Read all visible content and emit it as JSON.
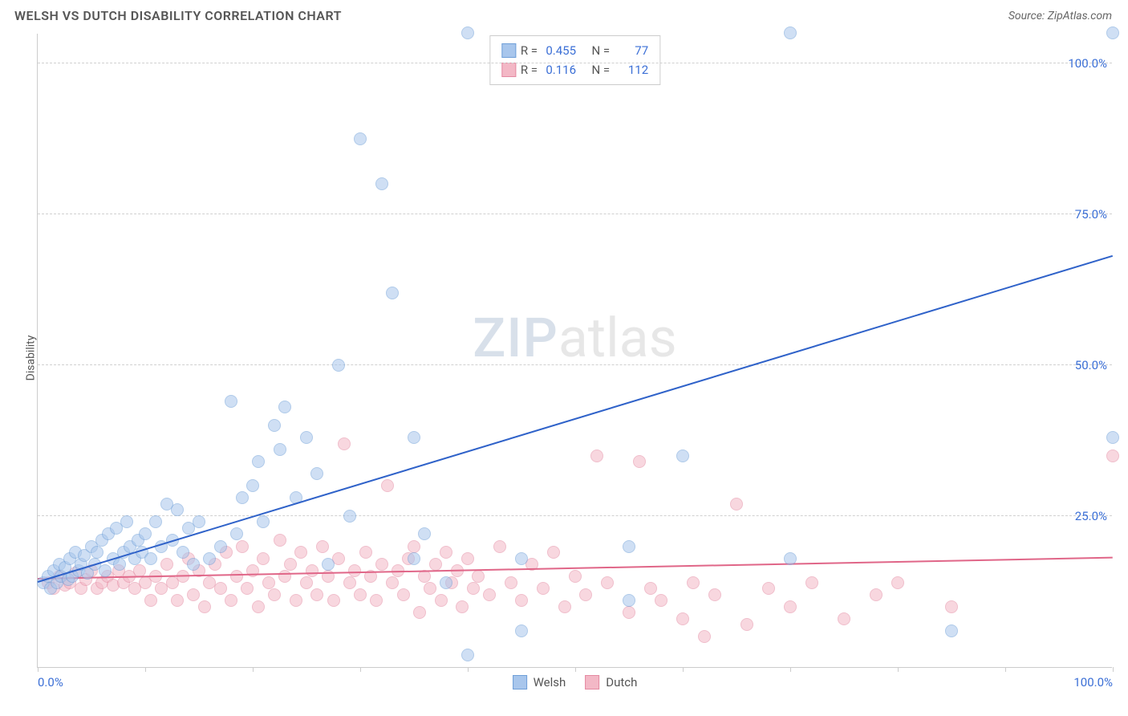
{
  "header": {
    "title": "WELSH VS DUTCH DISABILITY CORRELATION CHART",
    "source": "Source: ZipAtlas.com"
  },
  "watermark": {
    "zip": "ZIP",
    "atlas": "atlas"
  },
  "chart": {
    "type": "scatter",
    "ylabel": "Disability",
    "xlim": [
      0,
      100
    ],
    "ylim": [
      0,
      105
    ],
    "y_gridlines": [
      25,
      50,
      75,
      100
    ],
    "y_tick_labels": [
      "25.0%",
      "50.0%",
      "75.0%",
      "100.0%"
    ],
    "x_ticks": [
      0,
      10,
      20,
      30,
      40,
      50,
      60,
      70,
      80,
      90,
      100
    ],
    "x_tick_labels": {
      "0": "0.0%",
      "100": "100.0%"
    },
    "grid_color": "#d0d0d0",
    "axis_color": "#cccccc",
    "background_color": "#ffffff",
    "marker_radius": 8,
    "marker_opacity": 0.55,
    "trendline_width": 2
  },
  "series": {
    "welsh": {
      "label": "Welsh",
      "color_fill": "#a8c6ec",
      "color_stroke": "#6f9fd8",
      "line_color": "#2f62c9",
      "R": "0.455",
      "N": "77",
      "trend": {
        "x1": 0,
        "y1": 14,
        "x2": 100,
        "y2": 68
      },
      "points": [
        [
          0.5,
          14
        ],
        [
          1,
          15
        ],
        [
          1.2,
          13
        ],
        [
          1.5,
          16
        ],
        [
          1.8,
          14
        ],
        [
          2,
          17
        ],
        [
          2.2,
          15
        ],
        [
          2.5,
          16.5
        ],
        [
          2.8,
          14.5
        ],
        [
          3,
          18
        ],
        [
          3.2,
          15
        ],
        [
          3.5,
          19
        ],
        [
          3.8,
          16
        ],
        [
          4,
          17
        ],
        [
          4.3,
          18.5
        ],
        [
          4.6,
          15.5
        ],
        [
          5,
          20
        ],
        [
          5.3,
          17
        ],
        [
          5.5,
          19
        ],
        [
          6,
          21
        ],
        [
          6.3,
          16
        ],
        [
          6.6,
          22
        ],
        [
          7,
          18
        ],
        [
          7.3,
          23
        ],
        [
          7.6,
          17
        ],
        [
          8,
          19
        ],
        [
          8.3,
          24
        ],
        [
          8.6,
          20
        ],
        [
          9,
          18
        ],
        [
          9.3,
          21
        ],
        [
          9.7,
          19
        ],
        [
          10,
          22
        ],
        [
          10.5,
          18
        ],
        [
          11,
          24
        ],
        [
          11.5,
          20
        ],
        [
          12,
          27
        ],
        [
          12.5,
          21
        ],
        [
          13,
          26
        ],
        [
          13.5,
          19
        ],
        [
          14,
          23
        ],
        [
          14.5,
          17
        ],
        [
          15,
          24
        ],
        [
          16,
          18
        ],
        [
          17,
          20
        ],
        [
          18,
          44
        ],
        [
          18.5,
          22
        ],
        [
          19,
          28
        ],
        [
          20,
          30
        ],
        [
          20.5,
          34
        ],
        [
          21,
          24
        ],
        [
          22,
          40
        ],
        [
          22.5,
          36
        ],
        [
          23,
          43
        ],
        [
          24,
          28
        ],
        [
          25,
          38
        ],
        [
          26,
          32
        ],
        [
          27,
          17
        ],
        [
          28,
          50
        ],
        [
          29,
          25
        ],
        [
          30,
          87.5
        ],
        [
          32,
          80
        ],
        [
          33,
          62
        ],
        [
          35,
          18
        ],
        [
          35,
          38
        ],
        [
          36,
          22
        ],
        [
          38,
          14
        ],
        [
          40,
          105
        ],
        [
          40,
          2
        ],
        [
          45,
          6
        ],
        [
          45,
          18
        ],
        [
          55,
          11
        ],
        [
          55,
          20
        ],
        [
          60,
          35
        ],
        [
          70,
          105
        ],
        [
          70,
          18
        ],
        [
          85,
          6
        ],
        [
          100,
          105
        ],
        [
          100,
          38
        ]
      ]
    },
    "dutch": {
      "label": "Dutch",
      "color_fill": "#f3b8c6",
      "color_stroke": "#e48aa2",
      "line_color": "#e06688",
      "R": "0.116",
      "N": "112",
      "trend": {
        "x1": 0,
        "y1": 14.5,
        "x2": 100,
        "y2": 18
      },
      "points": [
        [
          1,
          14
        ],
        [
          1.5,
          13
        ],
        [
          2,
          15
        ],
        [
          2.5,
          13.5
        ],
        [
          3,
          14
        ],
        [
          3.5,
          15.5
        ],
        [
          4,
          13
        ],
        [
          4.5,
          14.5
        ],
        [
          5,
          16
        ],
        [
          5.5,
          13
        ],
        [
          6,
          14
        ],
        [
          6.5,
          15
        ],
        [
          7,
          13.5
        ],
        [
          7.5,
          16
        ],
        [
          8,
          14
        ],
        [
          8.5,
          15
        ],
        [
          9,
          13
        ],
        [
          9.5,
          16
        ],
        [
          10,
          14
        ],
        [
          10.5,
          11
        ],
        [
          11,
          15
        ],
        [
          11.5,
          13
        ],
        [
          12,
          17
        ],
        [
          12.5,
          14
        ],
        [
          13,
          11
        ],
        [
          13.5,
          15
        ],
        [
          14,
          18
        ],
        [
          14.5,
          12
        ],
        [
          15,
          16
        ],
        [
          15.5,
          10
        ],
        [
          16,
          14
        ],
        [
          16.5,
          17
        ],
        [
          17,
          13
        ],
        [
          17.5,
          19
        ],
        [
          18,
          11
        ],
        [
          18.5,
          15
        ],
        [
          19,
          20
        ],
        [
          19.5,
          13
        ],
        [
          20,
          16
        ],
        [
          20.5,
          10
        ],
        [
          21,
          18
        ],
        [
          21.5,
          14
        ],
        [
          22,
          12
        ],
        [
          22.5,
          21
        ],
        [
          23,
          15
        ],
        [
          23.5,
          17
        ],
        [
          24,
          11
        ],
        [
          24.5,
          19
        ],
        [
          25,
          14
        ],
        [
          25.5,
          16
        ],
        [
          26,
          12
        ],
        [
          26.5,
          20
        ],
        [
          27,
          15
        ],
        [
          27.5,
          11
        ],
        [
          28,
          18
        ],
        [
          28.5,
          37
        ],
        [
          29,
          14
        ],
        [
          29.5,
          16
        ],
        [
          30,
          12
        ],
        [
          30.5,
          19
        ],
        [
          31,
          15
        ],
        [
          31.5,
          11
        ],
        [
          32,
          17
        ],
        [
          32.5,
          30
        ],
        [
          33,
          14
        ],
        [
          33.5,
          16
        ],
        [
          34,
          12
        ],
        [
          34.5,
          18
        ],
        [
          35,
          20
        ],
        [
          35.5,
          9
        ],
        [
          36,
          15
        ],
        [
          36.5,
          13
        ],
        [
          37,
          17
        ],
        [
          37.5,
          11
        ],
        [
          38,
          19
        ],
        [
          38.5,
          14
        ],
        [
          39,
          16
        ],
        [
          39.5,
          10
        ],
        [
          40,
          18
        ],
        [
          40.5,
          13
        ],
        [
          41,
          15
        ],
        [
          42,
          12
        ],
        [
          43,
          20
        ],
        [
          44,
          14
        ],
        [
          45,
          11
        ],
        [
          46,
          17
        ],
        [
          47,
          13
        ],
        [
          48,
          19
        ],
        [
          49,
          10
        ],
        [
          50,
          15
        ],
        [
          51,
          12
        ],
        [
          52,
          35
        ],
        [
          53,
          14
        ],
        [
          55,
          9
        ],
        [
          56,
          34
        ],
        [
          57,
          13
        ],
        [
          58,
          11
        ],
        [
          60,
          8
        ],
        [
          61,
          14
        ],
        [
          62,
          5
        ],
        [
          63,
          12
        ],
        [
          65,
          27
        ],
        [
          66,
          7
        ],
        [
          68,
          13
        ],
        [
          70,
          10
        ],
        [
          72,
          14
        ],
        [
          75,
          8
        ],
        [
          78,
          12
        ],
        [
          80,
          14
        ],
        [
          85,
          10
        ],
        [
          100,
          35
        ]
      ]
    }
  },
  "legend_top": {
    "r_label": "R =",
    "n_label": "N ="
  }
}
